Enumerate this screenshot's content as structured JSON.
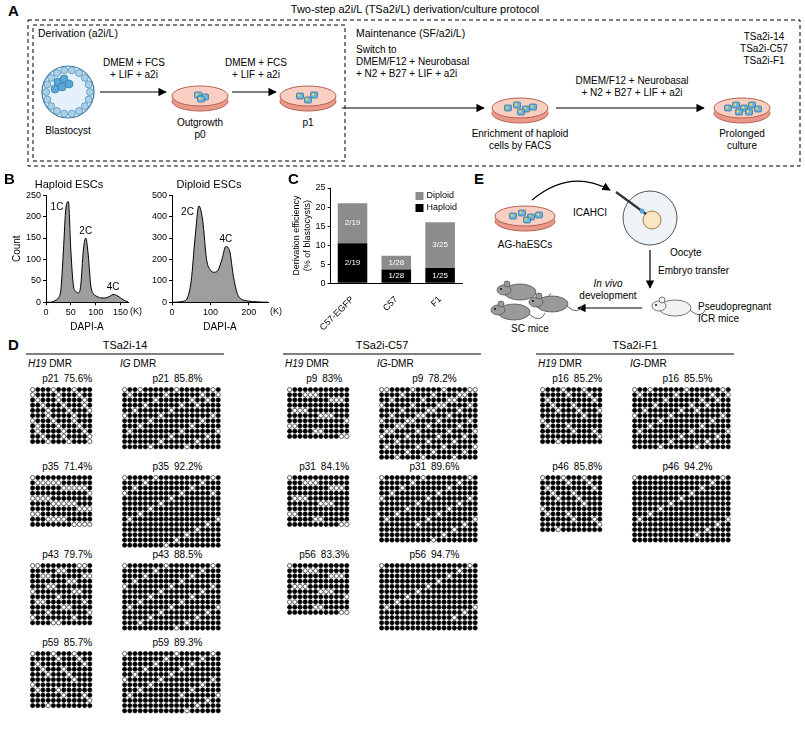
{
  "chart_data": [
    {
      "panel": "B",
      "type": "area",
      "title": "Haploid ESCs",
      "xlabel": "DAPI-A",
      "x_unit": "(K)",
      "ylabel": "Count",
      "x": [
        0,
        5,
        10,
        15,
        20,
        25,
        30,
        35,
        40,
        45,
        50,
        55,
        60,
        65,
        70,
        75,
        80,
        85,
        90,
        95,
        100,
        105,
        110,
        115,
        120,
        125,
        130,
        135,
        140,
        145,
        150,
        155,
        160,
        165
      ],
      "values": [
        0,
        0,
        0,
        2,
        5,
        10,
        30,
        120,
        220,
        235,
        120,
        40,
        25,
        22,
        40,
        120,
        150,
        110,
        40,
        20,
        15,
        12,
        10,
        10,
        10,
        12,
        15,
        18,
        17,
        14,
        10,
        6,
        3,
        1
      ],
      "color": "#9e9e9e",
      "xlim": [
        0,
        165
      ],
      "xticks": [
        0,
        50,
        100,
        150
      ],
      "ylim": [
        0,
        250
      ],
      "yticks": [
        0,
        50,
        100,
        150,
        200,
        250
      ],
      "grid": false,
      "annotations": [
        "1C",
        "2C",
        "4C"
      ]
    },
    {
      "panel": "B",
      "type": "area",
      "title": "Diploid ESCs",
      "xlabel": "DAPI-A",
      "x_unit": "(K)",
      "x": [
        0,
        10,
        20,
        30,
        40,
        50,
        60,
        70,
        80,
        90,
        100,
        110,
        120,
        130,
        140,
        150,
        160,
        170,
        180,
        190,
        200,
        210,
        220,
        230,
        240,
        250
      ],
      "values": [
        0,
        0,
        2,
        5,
        20,
        100,
        300,
        450,
        380,
        200,
        150,
        140,
        150,
        200,
        260,
        240,
        120,
        40,
        15,
        8,
        5,
        3,
        2,
        1,
        0,
        0
      ],
      "color": "#9e9e9e",
      "xlim": [
        0,
        250
      ],
      "xticks": [
        0,
        100,
        200
      ],
      "ylim": [
        0,
        500
      ],
      "yticks": [
        0,
        100,
        200,
        300,
        400,
        500
      ],
      "grid": false,
      "annotations": [
        "2C",
        "4C"
      ]
    },
    {
      "panel": "C",
      "type": "bar",
      "stacked": true,
      "ylabel": [
        "Derivation efficiency",
        "(% of blastocysts)"
      ],
      "categories": [
        "C57-EGFP",
        "C57",
        "F1"
      ],
      "series": [
        {
          "name": "Haploid",
          "color": "#000000",
          "values": [
            10.5,
            3.6,
            4.0
          ],
          "value_labels": [
            "2/19",
            "1/28",
            "1/25"
          ]
        },
        {
          "name": "Diploid",
          "color": "#8c8c8c",
          "values": [
            10.5,
            3.6,
            12.0
          ],
          "value_labels": [
            "2/19",
            "1/28",
            "3/25"
          ]
        }
      ],
      "ylim": [
        0,
        25
      ],
      "yticks": [
        0,
        5,
        10,
        15,
        20,
        25
      ],
      "grid": false,
      "legend": "upper right",
      "data_labels": true
    }
  ],
  "panels": {
    "A": {
      "label": "A",
      "title": "Two-step a2i/L (TSa2i/L) derivation/culture protocol",
      "derivation": {
        "title": "Derivation (a2i/L)",
        "start": "Blastocyst",
        "medium_1": [
          "DMEM + FCS",
          "+ LIF + a2i"
        ],
        "outgrowth": [
          "Outgrowth",
          "p0"
        ],
        "medium_2": [
          "DMEM + FCS",
          "+ LIF + a2i"
        ],
        "passage": "p1"
      },
      "maintenance": {
        "title": "Maintenance (SF/a2i/L)",
        "medium_1": [
          "Switch to",
          "DMEM/F12 + Neurobasal",
          "+ N2 + B27 + LIF + a2i"
        ],
        "enrichment": [
          "Enrichment of haploid",
          "cells by FACS"
        ],
        "medium_2": [
          "DMEM/F12 + Neurobasal",
          "+ N2 + B27 + LIF + a2i"
        ],
        "lines": [
          "TSa2i-14",
          "TSa2i-C57",
          "TSa2i-F1"
        ],
        "end": [
          "Prolonged",
          "culture"
        ]
      }
    },
    "D": {
      "label": "D",
      "groups": [
        {
          "name": "TSa2i-14",
          "dmrs": [
            "H19 DMR",
            "IG DMR"
          ],
          "samples": [
            {
              "passage": "p21",
              "dmrs": [
                {
                  "value": 75.6,
                  "label": "75.6%",
                  "clones": 11,
                  "cpg_sites": 12
                },
                {
                  "value": 85.8,
                  "label": "85.8%",
                  "clones": 12,
                  "cpg_sites": 19
                }
              ]
            },
            {
              "passage": "p35",
              "dmrs": [
                {
                  "value": 71.4,
                  "label": "71.4%",
                  "clones": 10,
                  "cpg_sites": 12
                },
                {
                  "value": 92.2,
                  "label": "92.2%",
                  "clones": 14,
                  "cpg_sites": 19
                }
              ]
            },
            {
              "passage": "p43",
              "dmrs": [
                {
                  "value": 79.7,
                  "label": "79.7%",
                  "clones": 12,
                  "cpg_sites": 12
                },
                {
                  "value": 88.5,
                  "label": "88.5%",
                  "clones": 13,
                  "cpg_sites": 19
                }
              ]
            },
            {
              "passage": "p59",
              "dmrs": [
                {
                  "value": 85.7,
                  "label": "85.7%",
                  "clones": 11,
                  "cpg_sites": 12
                },
                {
                  "value": 89.3,
                  "label": "89.3%",
                  "clones": 12,
                  "cpg_sites": 19
                }
              ]
            }
          ]
        },
        {
          "name": "TSa2i-C57",
          "dmrs": [
            "H19 DMR",
            "IG-DMR"
          ],
          "samples": [
            {
              "passage": "p9",
              "dmrs": [
                {
                  "value": 83,
                  "label": "83%",
                  "clones": 10,
                  "cpg_sites": 12
                },
                {
                  "value": 78.2,
                  "label": "78.2%",
                  "clones": 14,
                  "cpg_sites": 19
                }
              ]
            },
            {
              "passage": "p31",
              "dmrs": [
                {
                  "value": 84.1,
                  "label": "84.1%",
                  "clones": 10,
                  "cpg_sites": 12
                },
                {
                  "value": 89.6,
                  "label": "89.6%",
                  "clones": 13,
                  "cpg_sites": 19
                }
              ]
            },
            {
              "passage": "p56",
              "dmrs": [
                {
                  "value": 83.3,
                  "label": "83.3%",
                  "clones": 10,
                  "cpg_sites": 12
                },
                {
                  "value": 94.7,
                  "label": "94.7%",
                  "clones": 13,
                  "cpg_sites": 19
                }
              ]
            }
          ]
        },
        {
          "name": "TSa2i-F1",
          "dmrs": [
            "H19 DMR",
            "IG-DMR"
          ],
          "samples": [
            {
              "passage": "p16",
              "dmrs": [
                {
                  "value": 85.2,
                  "label": "85.2%",
                  "clones": 11,
                  "cpg_sites": 12
                },
                {
                  "value": 85.5,
                  "label": "85.5%",
                  "clones": 12,
                  "cpg_sites": 19
                }
              ]
            },
            {
              "passage": "p46",
              "dmrs": [
                {
                  "value": 85.8,
                  "label": "85.8%",
                  "clones": 11,
                  "cpg_sites": 12
                },
                {
                  "value": 94.2,
                  "label": "94.2%",
                  "clones": 13,
                  "cpg_sites": 19
                }
              ]
            }
          ]
        }
      ]
    },
    "E": {
      "label": "E",
      "source": "AG-haESCs",
      "injection": "ICAHCI",
      "oocyte": "Oocyte",
      "transfer": "Embryo transfer",
      "development": [
        "In vivo",
        "development"
      ],
      "recipient": [
        "Pseudopregnant",
        "ICR mice"
      ],
      "offspring": "SC mice"
    }
  }
}
